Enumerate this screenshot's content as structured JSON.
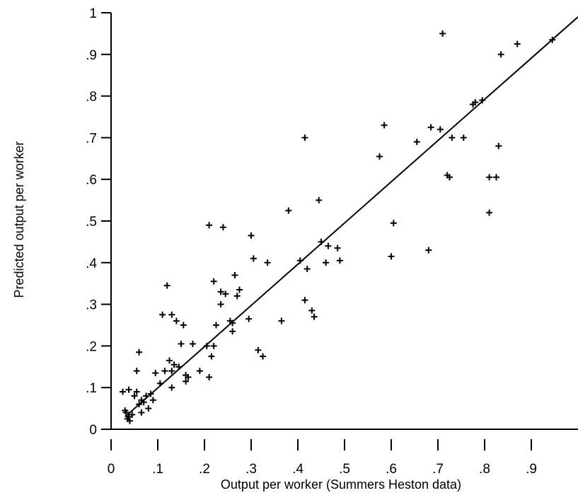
{
  "chart_data": {
    "type": "scatter",
    "title": "",
    "xlabel": "Output per worker (Summers Heston data)",
    "ylabel": "Predicted output per worker",
    "xlim": [
      0,
      1
    ],
    "ylim": [
      0,
      1
    ],
    "x_ticks": [
      "0",
      ".1",
      ".2",
      ".3",
      ".4",
      ".5",
      ".6",
      ".7",
      ".8",
      ".9"
    ],
    "x_tick_values": [
      0,
      0.1,
      0.2,
      0.3,
      0.4,
      0.5,
      0.6,
      0.7,
      0.8,
      0.9
    ],
    "y_ticks": [
      "0",
      ".1",
      ".2",
      ".3",
      ".4",
      ".5",
      ".6",
      ".7",
      ".8",
      ".9",
      "1"
    ],
    "y_tick_values": [
      0,
      0.1,
      0.2,
      0.3,
      0.4,
      0.5,
      0.6,
      0.7,
      0.8,
      0.9,
      1.0
    ],
    "grid": false,
    "marker": "+",
    "fit_line": {
      "x": [
        0.03,
        1.0
      ],
      "y": [
        0.03,
        0.99
      ]
    },
    "points": [
      [
        0.025,
        0.09
      ],
      [
        0.03,
        0.045
      ],
      [
        0.032,
        0.04
      ],
      [
        0.035,
        0.025
      ],
      [
        0.038,
        0.03
      ],
      [
        0.04,
        0.02
      ],
      [
        0.038,
        0.095
      ],
      [
        0.045,
        0.035
      ],
      [
        0.05,
        0.08
      ],
      [
        0.055,
        0.14
      ],
      [
        0.055,
        0.09
      ],
      [
        0.06,
        0.06
      ],
      [
        0.065,
        0.07
      ],
      [
        0.06,
        0.185
      ],
      [
        0.065,
        0.04
      ],
      [
        0.07,
        0.065
      ],
      [
        0.075,
        0.08
      ],
      [
        0.08,
        0.05
      ],
      [
        0.085,
        0.085
      ],
      [
        0.09,
        0.07
      ],
      [
        0.095,
        0.135
      ],
      [
        0.105,
        0.11
      ],
      [
        0.11,
        0.275
      ],
      [
        0.115,
        0.14
      ],
      [
        0.12,
        0.345
      ],
      [
        0.125,
        0.165
      ],
      [
        0.13,
        0.275
      ],
      [
        0.13,
        0.14
      ],
      [
        0.13,
        0.1
      ],
      [
        0.135,
        0.155
      ],
      [
        0.14,
        0.26
      ],
      [
        0.145,
        0.15
      ],
      [
        0.15,
        0.205
      ],
      [
        0.155,
        0.25
      ],
      [
        0.16,
        0.13
      ],
      [
        0.16,
        0.115
      ],
      [
        0.165,
        0.125
      ],
      [
        0.175,
        0.205
      ],
      [
        0.19,
        0.14
      ],
      [
        0.205,
        0.2
      ],
      [
        0.21,
        0.125
      ],
      [
        0.21,
        0.49
      ],
      [
        0.215,
        0.175
      ],
      [
        0.22,
        0.2
      ],
      [
        0.22,
        0.355
      ],
      [
        0.225,
        0.25
      ],
      [
        0.235,
        0.33
      ],
      [
        0.235,
        0.3
      ],
      [
        0.24,
        0.485
      ],
      [
        0.245,
        0.325
      ],
      [
        0.255,
        0.26
      ],
      [
        0.26,
        0.255
      ],
      [
        0.26,
        0.235
      ],
      [
        0.265,
        0.37
      ],
      [
        0.27,
        0.32
      ],
      [
        0.275,
        0.335
      ],
      [
        0.295,
        0.265
      ],
      [
        0.3,
        0.465
      ],
      [
        0.305,
        0.41
      ],
      [
        0.315,
        0.19
      ],
      [
        0.325,
        0.175
      ],
      [
        0.335,
        0.4
      ],
      [
        0.365,
        0.26
      ],
      [
        0.38,
        0.525
      ],
      [
        0.405,
        0.405
      ],
      [
        0.415,
        0.7
      ],
      [
        0.415,
        0.31
      ],
      [
        0.42,
        0.385
      ],
      [
        0.43,
        0.285
      ],
      [
        0.435,
        0.27
      ],
      [
        0.445,
        0.55
      ],
      [
        0.45,
        0.45
      ],
      [
        0.46,
        0.4
      ],
      [
        0.465,
        0.44
      ],
      [
        0.485,
        0.435
      ],
      [
        0.49,
        0.405
      ],
      [
        0.575,
        0.655
      ],
      [
        0.585,
        0.73
      ],
      [
        0.6,
        0.415
      ],
      [
        0.605,
        0.495
      ],
      [
        0.655,
        0.69
      ],
      [
        0.68,
        0.43
      ],
      [
        0.685,
        0.725
      ],
      [
        0.705,
        0.72
      ],
      [
        0.71,
        0.95
      ],
      [
        0.72,
        0.61
      ],
      [
        0.725,
        0.605
      ],
      [
        0.73,
        0.7
      ],
      [
        0.755,
        0.7
      ],
      [
        0.775,
        0.78
      ],
      [
        0.78,
        0.785
      ],
      [
        0.795,
        0.79
      ],
      [
        0.81,
        0.605
      ],
      [
        0.81,
        0.52
      ],
      [
        0.825,
        0.605
      ],
      [
        0.83,
        0.68
      ],
      [
        0.835,
        0.9
      ],
      [
        0.87,
        0.925
      ],
      [
        0.945,
        0.935
      ]
    ]
  }
}
